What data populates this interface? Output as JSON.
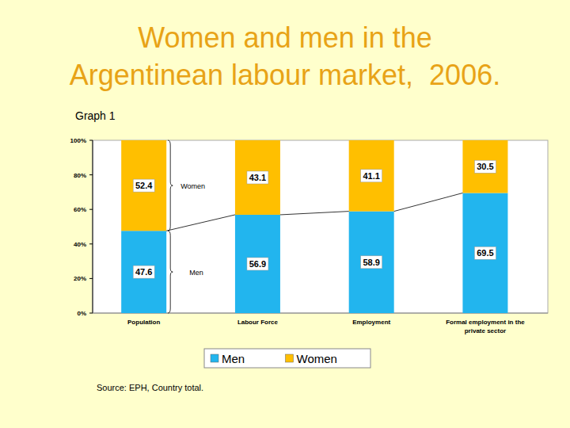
{
  "chart_data": {
    "type": "bar",
    "title": "Women and men in the\nArgentinean labour market,  2006.",
    "subtitle": "Graph 1",
    "source": "Source: EPH, Country total.",
    "annotations": [
      "Women",
      "Men"
    ],
    "categories": [
      "Population",
      "Labour Force",
      "Employment",
      "Formal employment in the private sector"
    ],
    "series": [
      {
        "name": "Men",
        "color": "#22B5EE",
        "values": [
          47.6,
          56.9,
          58.9,
          69.5
        ]
      },
      {
        "name": "Women",
        "color": "#FFBF00",
        "values": [
          52.4,
          43.1,
          41.1,
          30.5
        ]
      }
    ],
    "stacked": true,
    "data_labels": true,
    "grid": false,
    "legend": "bottom",
    "ylim": [
      0,
      100
    ],
    "yticks": [
      {
        "value": 0,
        "label": "0%"
      },
      {
        "value": 20,
        "label": "20%"
      },
      {
        "value": 40,
        "label": "40%"
      },
      {
        "value": 60,
        "label": "60%"
      },
      {
        "value": 80,
        "label": "80%"
      },
      {
        "value": 100,
        "label": "100%"
      }
    ]
  }
}
